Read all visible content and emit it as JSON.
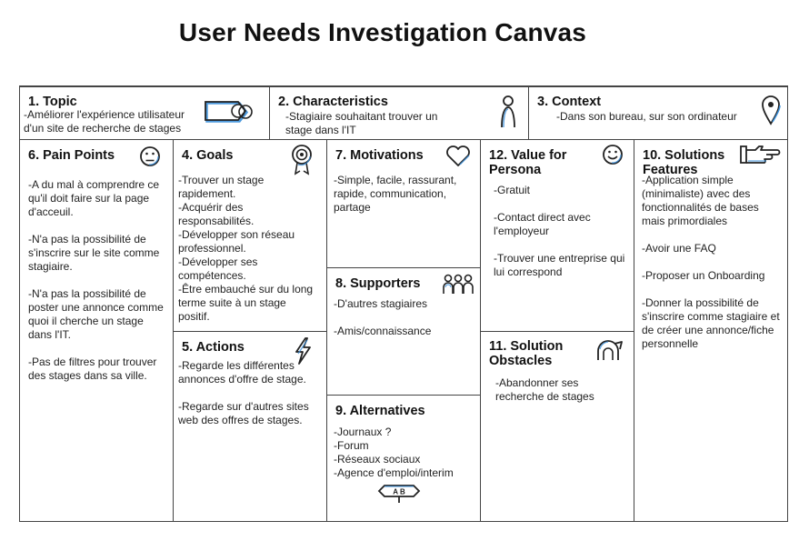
{
  "title": "User Needs Investigation Canvas",
  "sections": {
    "topic": {
      "heading": "1. Topic",
      "text": "-Améliorer l'expérience utilisateur d'un site de recherche de stages"
    },
    "characteristics": {
      "heading": "2. Characteristics",
      "text": "-Stagiaire souhaitant trouver un stage dans l'IT"
    },
    "context": {
      "heading": "3. Context",
      "text": "-Dans son bureau, sur son ordinateur"
    },
    "pain_points": {
      "heading": "6. Pain Points",
      "items": [
        "-A du mal à comprendre ce qu'il doit faire sur la page d'acceuil.",
        "-N'a pas la possibilité de s'inscrire sur le site comme stagiaire.",
        "-N'a pas la possibilité de poster une annonce comme quoi il cherche un stage dans l'IT.",
        "-Pas de filtres pour trouver des stages dans sa ville."
      ]
    },
    "goals": {
      "heading": "4. Goals",
      "items": [
        "-Trouver un stage rapidement.",
        "-Acquérir des responsabilités.",
        "-Développer son réseau professionnel.",
        "-Développer ses compétences.",
        "-Être embauché sur du long terme suite à un stage positif."
      ]
    },
    "actions": {
      "heading": "5. Actions",
      "items": [
        "-Regarde les différentes annonces d'offre de stage.",
        "-Regarde sur d'autres sites web des offres de stages."
      ]
    },
    "motivations": {
      "heading": "7. Motivations",
      "text": "-Simple, facile, rassurant, rapide, communication, partage"
    },
    "supporters": {
      "heading": "8. Supporters",
      "items": [
        "-D'autres stagiaires",
        "-Amis/connaissance"
      ]
    },
    "alternatives": {
      "heading": "9. Alternatives",
      "items": [
        "-Journaux ?",
        "-Forum",
        "-Réseaux sociaux",
        "-Agence d'emploi/interim"
      ],
      "icon_text": "A B"
    },
    "value": {
      "heading_line1": "12. Value for",
      "heading_line2": "Persona",
      "items": [
        "-Gratuit",
        "-Contact direct avec l'employeur",
        "-Trouver une entreprise qui lui correspond"
      ]
    },
    "obstacles": {
      "heading_line1": "11. Solution",
      "heading_line2": "Obstacles",
      "text": "-Abandonner ses recherche de stages"
    },
    "solutions": {
      "heading_line1": "10. Solutions",
      "heading_line2": "Features",
      "items": [
        "-Application simple (minimaliste) avec des fonctionnalités de bases mais primordiales",
        "-Avoir une FAQ",
        "-Proposer un Onboarding",
        "-Donner la possibilité de s'inscrire comme stagiaire et de créer une annonce/fiche personnelle"
      ]
    }
  },
  "colors": {
    "line": "#444444",
    "accent": "#3b8fd9",
    "text": "#1c1c1c"
  },
  "icons": {
    "topic": "tag-icon",
    "characteristics": "person-icon",
    "context": "map-pin-icon",
    "pain_points": "frown-face-icon",
    "goals": "target-medal-icon",
    "actions": "lightning-icon",
    "motivations": "heart-icon",
    "supporters": "group-icon",
    "alternatives": "ab-sign-icon",
    "value": "smile-face-icon",
    "obstacles": "hurdle-icon",
    "solutions": "pointing-hand-icon"
  }
}
